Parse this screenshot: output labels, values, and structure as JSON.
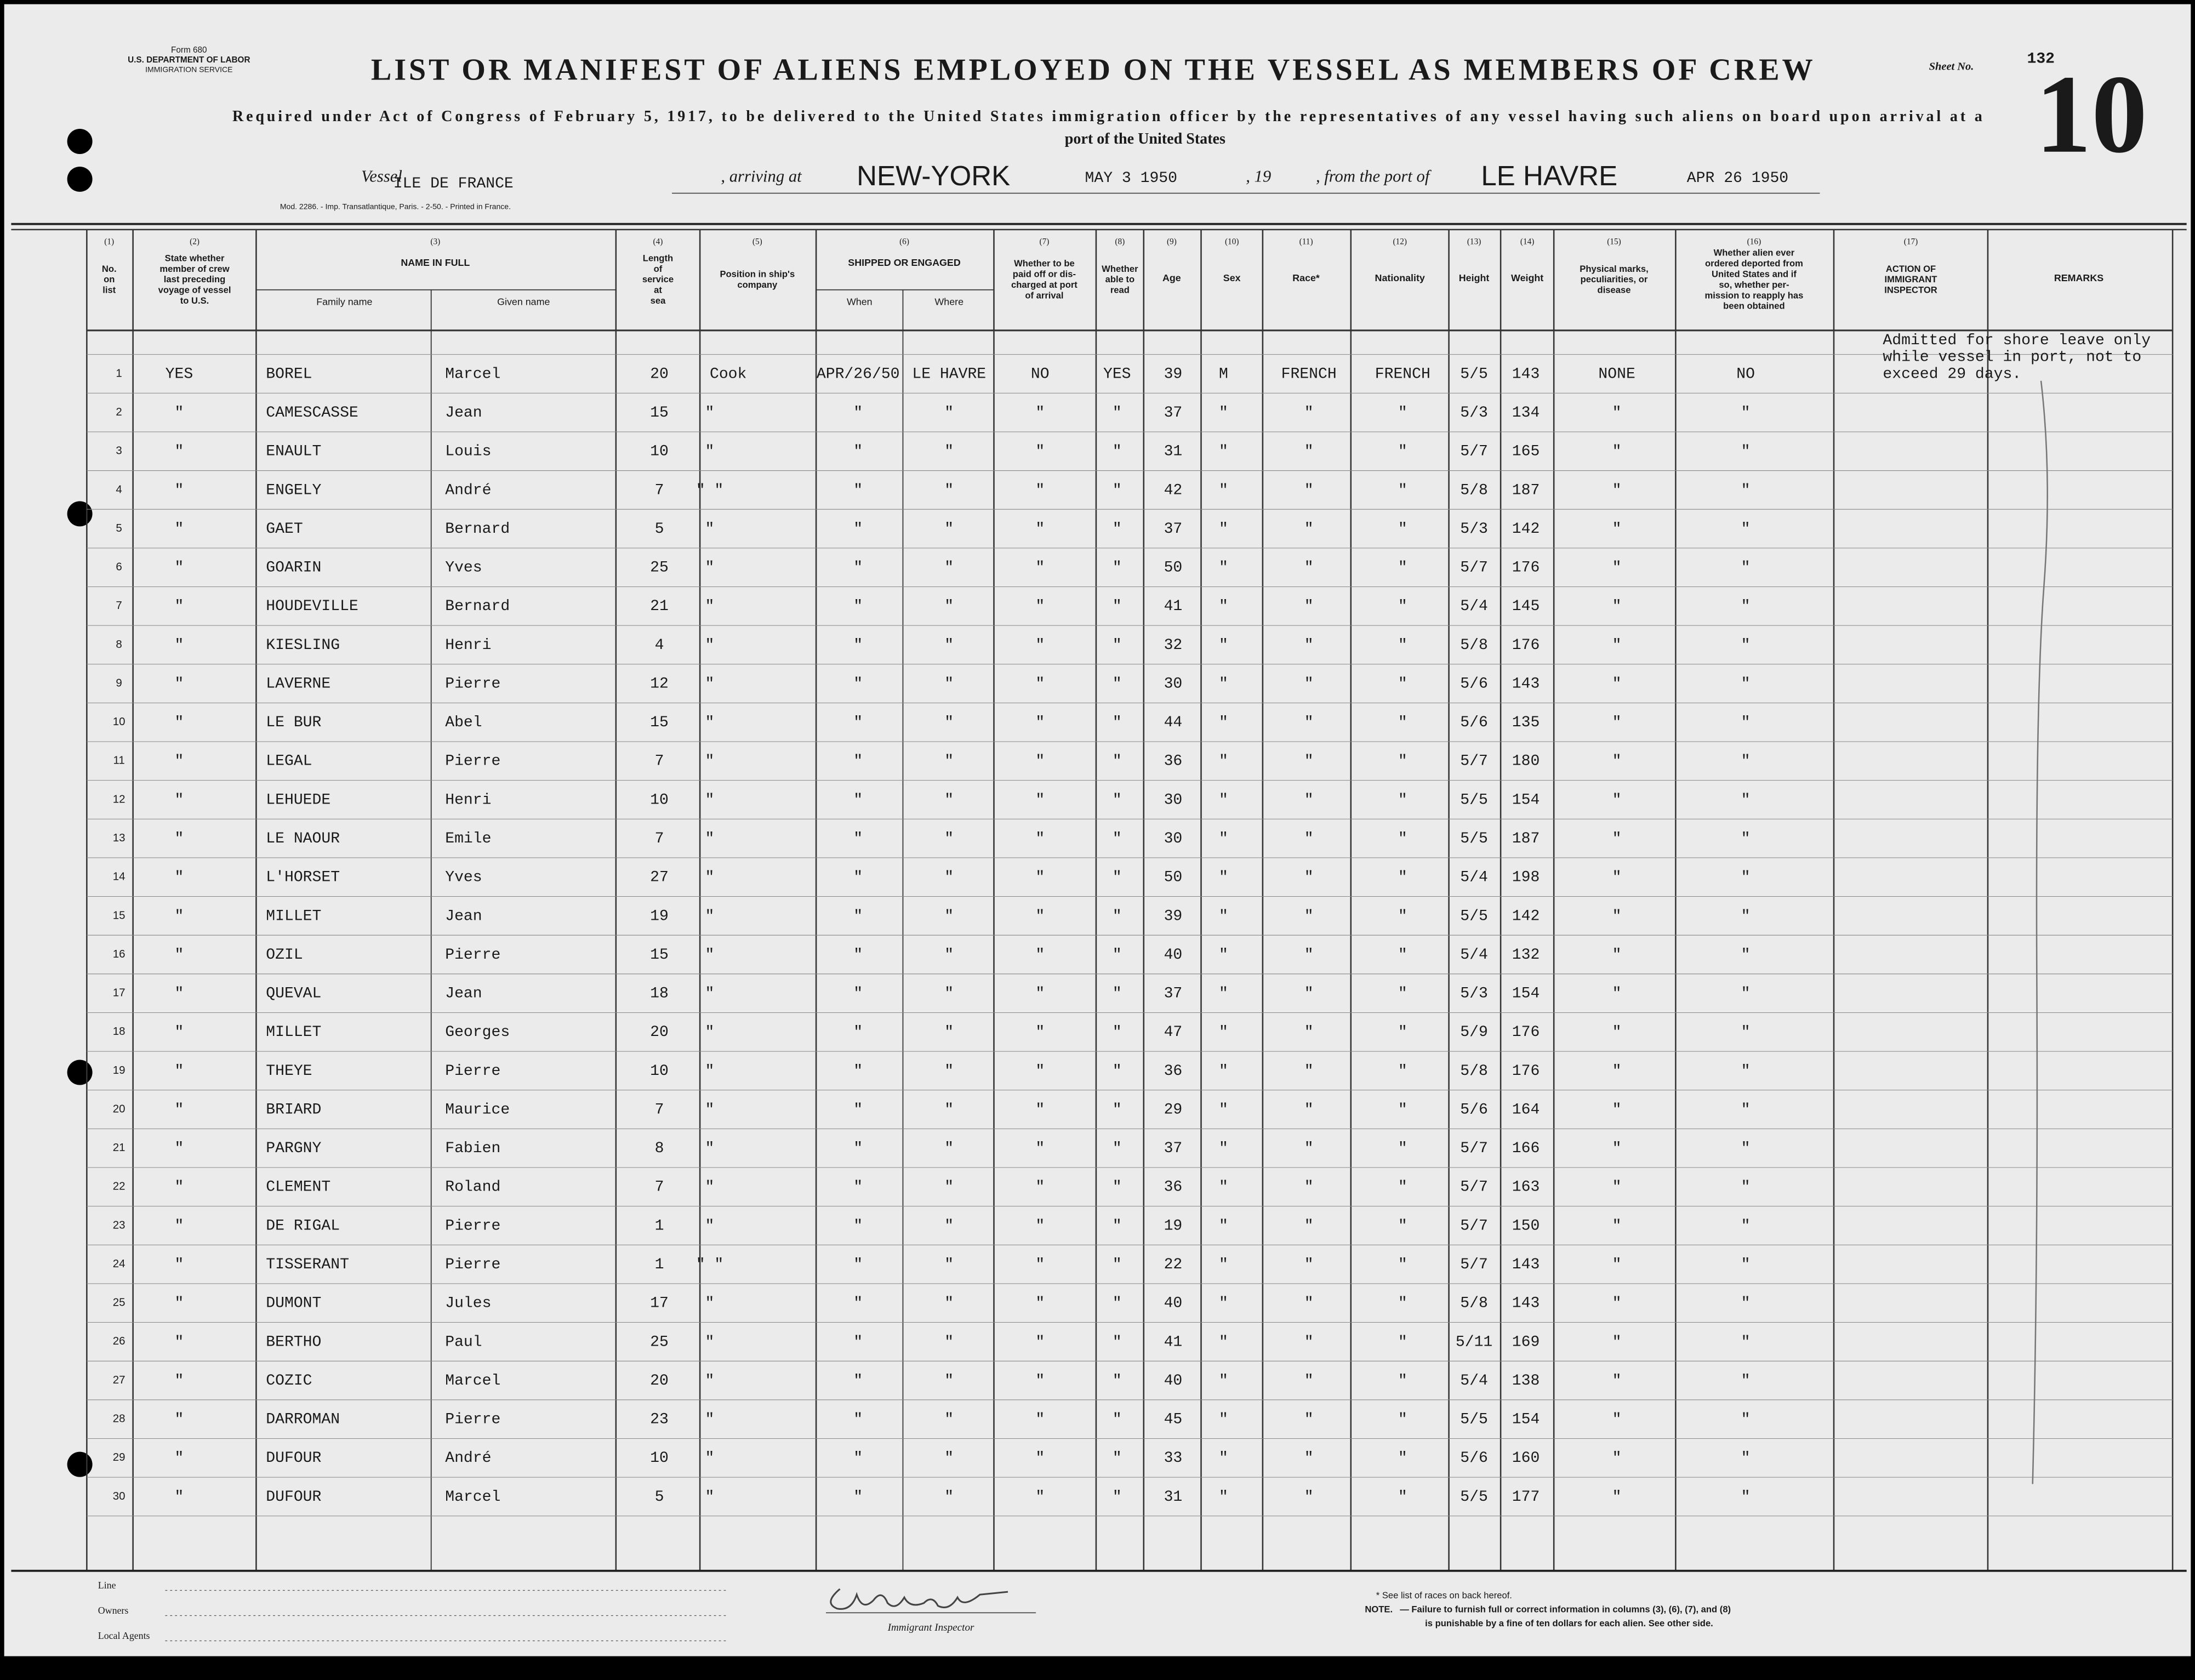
{
  "header": {
    "form": "Form 680",
    "department": "U.S. DEPARTMENT OF LABOR",
    "service": "IMMIGRATION SERVICE",
    "title": "LIST OR MANIFEST OF ALIENS EMPLOYED ON THE VESSEL AS MEMBERS OF CREW",
    "sheet_label": "Sheet No.",
    "sheet_no": "132",
    "page_no": "10",
    "requirement": [
      "Required under Act of Congress of February 5, 1917, to be delivered to the United States immigration officer by the representatives of any vessel having such aliens on board upon arrival at a",
      "port of the United States"
    ],
    "printer": "Mod. 2286. - Imp. Transatlantique, Paris. - 2-50. - Printed in France."
  },
  "vessel": {
    "label_vessel": "Vessel",
    "name": "ILE DE FRANCE",
    "label_arriving": ", arriving at",
    "port_arrival": "NEW-YORK",
    "date_arrival": "MAY 3 1950",
    "label_19": ", 19",
    "label_from": ", from the port of",
    "port_departure": "LE HAVRE",
    "date_departure": "APR 26 1950"
  },
  "columns": [
    {
      "num": "(1)",
      "lines": [
        "No.",
        "on",
        "list"
      ]
    },
    {
      "num": "(2)",
      "lines": [
        "State whether",
        "member of crew",
        "last preceding",
        "voyage of vessel",
        "to U.S."
      ]
    },
    {
      "num": "(3)",
      "lines": [
        "NAME IN FULL"
      ],
      "sub": [
        "Family name",
        "Given name"
      ]
    },
    {
      "num": "(4)",
      "lines": [
        "Length",
        "of",
        "service",
        "at",
        "sea"
      ]
    },
    {
      "num": "(5)",
      "lines": [
        "Position in ship's",
        "company"
      ]
    },
    {
      "num": "(6)",
      "lines": [
        "SHIPPED OR ENGAGED"
      ],
      "sub": [
        "When",
        "Where"
      ]
    },
    {
      "num": "(7)",
      "lines": [
        "Whether to be",
        "paid off or dis-",
        "charged at port",
        "of arrival"
      ]
    },
    {
      "num": "(8)",
      "lines": [
        "Whether",
        "able to",
        "read"
      ]
    },
    {
      "num": "(9)",
      "lines": [
        "Age"
      ]
    },
    {
      "num": "(10)",
      "lines": [
        "Sex"
      ]
    },
    {
      "num": "(11)",
      "lines": [
        "Race*"
      ]
    },
    {
      "num": "(12)",
      "lines": [
        "Nationality"
      ]
    },
    {
      "num": "(13)",
      "lines": [
        "Height"
      ]
    },
    {
      "num": "(14)",
      "lines": [
        "Weight"
      ]
    },
    {
      "num": "(15)",
      "lines": [
        "Physical marks,",
        "peculiarities, or",
        "disease"
      ]
    },
    {
      "num": "(16)",
      "lines": [
        "Whether alien ever",
        "ordered deported from",
        "United States and if",
        "so, whether per-",
        "mission to reapply has",
        "been obtained"
      ]
    },
    {
      "num": "(17)",
      "lines": [
        "ACTION OF",
        "IMMIGRANT",
        "INSPECTOR"
      ]
    },
    {
      "lines": [
        "REMARKS"
      ]
    }
  ],
  "table": {
    "rows": [
      [
        "1",
        "YES",
        "BOREL",
        "Marcel",
        "20",
        "Cook",
        "APR/26/50",
        "LE HAVRE",
        "NO",
        "YES",
        "39",
        "M",
        "FRENCH",
        "FRENCH",
        "5/5",
        "143",
        "NONE",
        "NO"
      ],
      [
        "2",
        "\"",
        "CAMESCASSE",
        "Jean",
        "15",
        "\"",
        "\"",
        "\"",
        "\"",
        "\"",
        "37",
        "\"",
        "\"",
        "\"",
        "5/3",
        "134",
        "\"",
        "\""
      ],
      [
        "3",
        "\"",
        "ENAULT",
        "Louis",
        "10",
        "\"",
        "\"",
        "\"",
        "\"",
        "\"",
        "31",
        "\"",
        "\"",
        "\"",
        "5/7",
        "165",
        "\"",
        "\""
      ],
      [
        "4",
        "\"",
        "ENGELY",
        "André",
        "7",
        "\"   \"",
        "\"",
        "\"",
        "\"",
        "\"",
        "42",
        "\"",
        "\"",
        "\"",
        "5/8",
        "187",
        "\"",
        "\""
      ],
      [
        "5",
        "\"",
        "GAET",
        "Bernard",
        "5",
        "\"",
        "\"",
        "\"",
        "\"",
        "\"",
        "37",
        "\"",
        "\"",
        "\"",
        "5/3",
        "142",
        "\"",
        "\""
      ],
      [
        "6",
        "\"",
        "GOARIN",
        "Yves",
        "25",
        "\"",
        "\"",
        "\"",
        "\"",
        "\"",
        "50",
        "\"",
        "\"",
        "\"",
        "5/7",
        "176",
        "\"",
        "\""
      ],
      [
        "7",
        "\"",
        "HOUDEVILLE",
        "Bernard",
        "21",
        "\"",
        "\"",
        "\"",
        "\"",
        "\"",
        "41",
        "\"",
        "\"",
        "\"",
        "5/4",
        "145",
        "\"",
        "\""
      ],
      [
        "8",
        "\"",
        "KIESLING",
        "Henri",
        "4",
        "\"",
        "\"",
        "\"",
        "\"",
        "\"",
        "32",
        "\"",
        "\"",
        "\"",
        "5/8",
        "176",
        "\"",
        "\""
      ],
      [
        "9",
        "\"",
        "LAVERNE",
        "Pierre",
        "12",
        "\"",
        "\"",
        "\"",
        "\"",
        "\"",
        "30",
        "\"",
        "\"",
        "\"",
        "5/6",
        "143",
        "\"",
        "\""
      ],
      [
        "10",
        "\"",
        "LE BUR",
        "Abel",
        "15",
        "\"",
        "\"",
        "\"",
        "\"",
        "\"",
        "44",
        "\"",
        "\"",
        "\"",
        "5/6",
        "135",
        "\"",
        "\""
      ],
      [
        "11",
        "\"",
        "LEGAL",
        "Pierre",
        "7",
        "\"",
        "\"",
        "\"",
        "\"",
        "\"",
        "36",
        "\"",
        "\"",
        "\"",
        "5/7",
        "180",
        "\"",
        "\""
      ],
      [
        "12",
        "\"",
        "LEHUEDE",
        "Henri",
        "10",
        "\"",
        "\"",
        "\"",
        "\"",
        "\"",
        "30",
        "\"",
        "\"",
        "\"",
        "5/5",
        "154",
        "\"",
        "\""
      ],
      [
        "13",
        "\"",
        "LE NAOUR",
        "Emile",
        "7",
        "\"",
        "\"",
        "\"",
        "\"",
        "\"",
        "30",
        "\"",
        "\"",
        "\"",
        "5/5",
        "187",
        "\"",
        "\""
      ],
      [
        "14",
        "\"",
        "L'HORSET",
        "Yves",
        "27",
        "\"",
        "\"",
        "\"",
        "\"",
        "\"",
        "50",
        "\"",
        "\"",
        "\"",
        "5/4",
        "198",
        "\"",
        "\""
      ],
      [
        "15",
        "\"",
        "MILLET",
        "Jean",
        "19",
        "\"",
        "\"",
        "\"",
        "\"",
        "\"",
        "39",
        "\"",
        "\"",
        "\"",
        "5/5",
        "142",
        "\"",
        "\""
      ],
      [
        "16",
        "\"",
        "OZIL",
        "Pierre",
        "15",
        "\"",
        "\"",
        "\"",
        "\"",
        "\"",
        "40",
        "\"",
        "\"",
        "\"",
        "5/4",
        "132",
        "\"",
        "\""
      ],
      [
        "17",
        "\"",
        "QUEVAL",
        "Jean",
        "18",
        "\"",
        "\"",
        "\"",
        "\"",
        "\"",
        "37",
        "\"",
        "\"",
        "\"",
        "5/3",
        "154",
        "\"",
        "\""
      ],
      [
        "18",
        "\"",
        "MILLET",
        "Georges",
        "20",
        "\"",
        "\"",
        "\"",
        "\"",
        "\"",
        "47",
        "\"",
        "\"",
        "\"",
        "5/9",
        "176",
        "\"",
        "\""
      ],
      [
        "19",
        "\"",
        "THEYE",
        "Pierre",
        "10",
        "\"",
        "\"",
        "\"",
        "\"",
        "\"",
        "36",
        "\"",
        "\"",
        "\"",
        "5/8",
        "176",
        "\"",
        "\""
      ],
      [
        "20",
        "\"",
        "BRIARD",
        "Maurice",
        "7",
        "\"",
        "\"",
        "\"",
        "\"",
        "\"",
        "29",
        "\"",
        "\"",
        "\"",
        "5/6",
        "164",
        "\"",
        "\""
      ],
      [
        "21",
        "\"",
        "PARGNY",
        "Fabien",
        "8",
        "\"",
        "\"",
        "\"",
        "\"",
        "\"",
        "37",
        "\"",
        "\"",
        "\"",
        "5/7",
        "166",
        "\"",
        "\""
      ],
      [
        "22",
        "\"",
        "CLEMENT",
        "Roland",
        "7",
        "\"",
        "\"",
        "\"",
        "\"",
        "\"",
        "36",
        "\"",
        "\"",
        "\"",
        "5/7",
        "163",
        "\"",
        "\""
      ],
      [
        "23",
        "\"",
        "DE RIGAL",
        "Pierre",
        "1",
        "\"",
        "\"",
        "\"",
        "\"",
        "\"",
        "19",
        "\"",
        "\"",
        "\"",
        "5/7",
        "150",
        "\"",
        "\""
      ],
      [
        "24",
        "\"",
        "TISSERANT",
        "Pierre",
        "1",
        "\"   \"",
        "\"",
        "\"",
        "\"",
        "\"",
        "22",
        "\"",
        "\"",
        "\"",
        "5/7",
        "143",
        "\"",
        "\""
      ],
      [
        "25",
        "\"",
        "DUMONT",
        "Jules",
        "17",
        "\"",
        "\"",
        "\"",
        "\"",
        "\"",
        "40",
        "\"",
        "\"",
        "\"",
        "5/8",
        "143",
        "\"",
        "\""
      ],
      [
        "26",
        "\"",
        "BERTHO",
        "Paul",
        "25",
        "\"",
        "\"",
        "\"",
        "\"",
        "\"",
        "41",
        "\"",
        "\"",
        "\"",
        "5/11",
        "169",
        "\"",
        "\""
      ],
      [
        "27",
        "\"",
        "COZIC",
        "Marcel",
        "20",
        "\"",
        "\"",
        "\"",
        "\"",
        "\"",
        "40",
        "\"",
        "\"",
        "\"",
        "5/4",
        "138",
        "\"",
        "\""
      ],
      [
        "28",
        "\"",
        "DARROMAN",
        "Pierre",
        "23",
        "\"",
        "\"",
        "\"",
        "\"",
        "\"",
        "45",
        "\"",
        "\"",
        "\"",
        "5/5",
        "154",
        "\"",
        "\""
      ],
      [
        "29",
        "\"",
        "DUFOUR",
        "André",
        "10",
        "\"",
        "\"",
        "\"",
        "\"",
        "\"",
        "33",
        "\"",
        "\"",
        "\"",
        "5/6",
        "160",
        "\"",
        "\""
      ],
      [
        "30",
        "\"",
        "DUFOUR",
        "Marcel",
        "5",
        "\"",
        "\"",
        "\"",
        "\"",
        "\"",
        "31",
        "\"",
        "\"",
        "\"",
        "5/5",
        "177",
        "\"",
        "\""
      ]
    ],
    "remarks": [
      "Admitted for shore leave only",
      "while vessel in port, not to",
      "exceed 29 days."
    ]
  },
  "footer": {
    "line": "Line",
    "owners": "Owners",
    "agents": "Local Agents",
    "inspector": "Immigrant Inspector",
    "races_note": "* See list of races on back hereof.",
    "note_label": "NOTE.",
    "note": [
      "— Failure to furnish full or correct information in columns (3), (6), (7), and (8)",
      "is punishable by a fine of ten dollars for each alien. See other side."
    ]
  }
}
